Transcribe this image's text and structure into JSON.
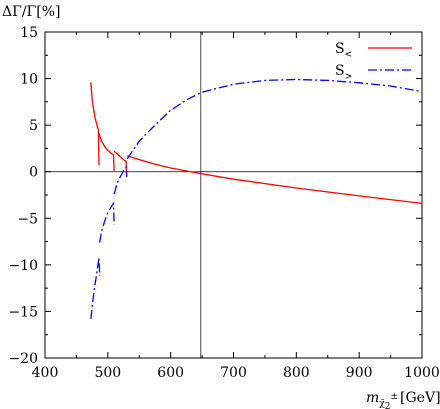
{
  "chart_data": {
    "type": "line",
    "ylabel": "ΔΓ/Γ[%]",
    "xlabel": {
      "var": "m",
      "sub": "χ̃",
      "sub2": "2",
      "sup": "±",
      "unit": "[GeV]"
    },
    "xlim": [
      400,
      1000
    ],
    "ylim": [
      -20,
      15
    ],
    "xticks": [
      400,
      500,
      600,
      700,
      800,
      900,
      1000
    ],
    "yticks": [
      -20,
      -15,
      -10,
      -5,
      0,
      5,
      10,
      15
    ],
    "xtick_labels": [
      "400",
      "500",
      "600",
      "700",
      "800",
      "900",
      "1000"
    ],
    "ytick_labels": [
      "−20",
      "−15",
      "−10",
      "−5",
      "0",
      "5",
      "10",
      "15"
    ],
    "grid": false,
    "reference_lines": {
      "horizontal_y": 0,
      "vertical_x": 648
    },
    "legend_position": "top-right",
    "series": [
      {
        "name": "S<",
        "legend_main": "S",
        "legend_sub": "<",
        "color": "#ff0000",
        "style": "solid",
        "segments": [
          [
            [
              473,
              9.6
            ],
            [
              475,
              7.8
            ],
            [
              477,
              6.8
            ],
            [
              480,
              5.7
            ],
            [
              483,
              4.9
            ],
            [
              485,
              4.5
            ],
            [
              486,
              0.7
            ]
          ],
          [
            [
              486,
              4.1
            ],
            [
              490,
              3.3
            ],
            [
              495,
              2.7
            ],
            [
              500,
              2.3
            ],
            [
              505,
              2.0
            ],
            [
              509,
              1.8
            ],
            [
              510,
              0.1
            ]
          ],
          [
            [
              510,
              2.2
            ],
            [
              515,
              1.9
            ],
            [
              520,
              1.6
            ],
            [
              525,
              1.3
            ],
            [
              529,
              1.1
            ],
            [
              530,
              -0.6
            ]
          ],
          [
            [
              531,
              1.7
            ],
            [
              550,
              1.3
            ],
            [
              575,
              0.8
            ],
            [
              600,
              0.4
            ],
            [
              648,
              -0.2
            ],
            [
              700,
              -0.8
            ],
            [
              800,
              -1.75
            ],
            [
              900,
              -2.6
            ],
            [
              1000,
              -3.4
            ]
          ]
        ]
      },
      {
        "name": "S>",
        "legend_main": "S",
        "legend_sub": ">",
        "color": "#0000ff",
        "style": "dash-dot",
        "segments": [
          [
            [
              473,
              -15.8
            ],
            [
              476,
              -13.9
            ],
            [
              479,
              -12.4
            ],
            [
              482,
              -11.1
            ],
            [
              484,
              -10.1
            ],
            [
              486,
              -9.2
            ],
            [
              487,
              -11.2
            ]
          ],
          [
            [
              487,
              -7.6
            ],
            [
              490,
              -6.4
            ],
            [
              495,
              -5.3
            ],
            [
              500,
              -4.4
            ],
            [
              505,
              -3.8
            ],
            [
              509,
              -3.4
            ],
            [
              510,
              -5.7
            ]
          ],
          [
            [
              510,
              -2.4
            ],
            [
              515,
              -1.2
            ],
            [
              520,
              -0.5
            ],
            [
              525,
              0.1
            ],
            [
              529,
              0.5
            ],
            [
              530,
              -0.5
            ]
          ],
          [
            [
              531,
              1.4
            ],
            [
              540,
              2.3
            ],
            [
              550,
              3.3
            ],
            [
              575,
              5.0
            ],
            [
              600,
              6.6
            ],
            [
              625,
              7.7
            ],
            [
              648,
              8.5
            ],
            [
              700,
              9.4
            ],
            [
              750,
              9.8
            ],
            [
              800,
              9.9
            ],
            [
              850,
              9.8
            ],
            [
              900,
              9.55
            ],
            [
              950,
              9.2
            ],
            [
              1000,
              8.6
            ]
          ]
        ]
      }
    ]
  }
}
